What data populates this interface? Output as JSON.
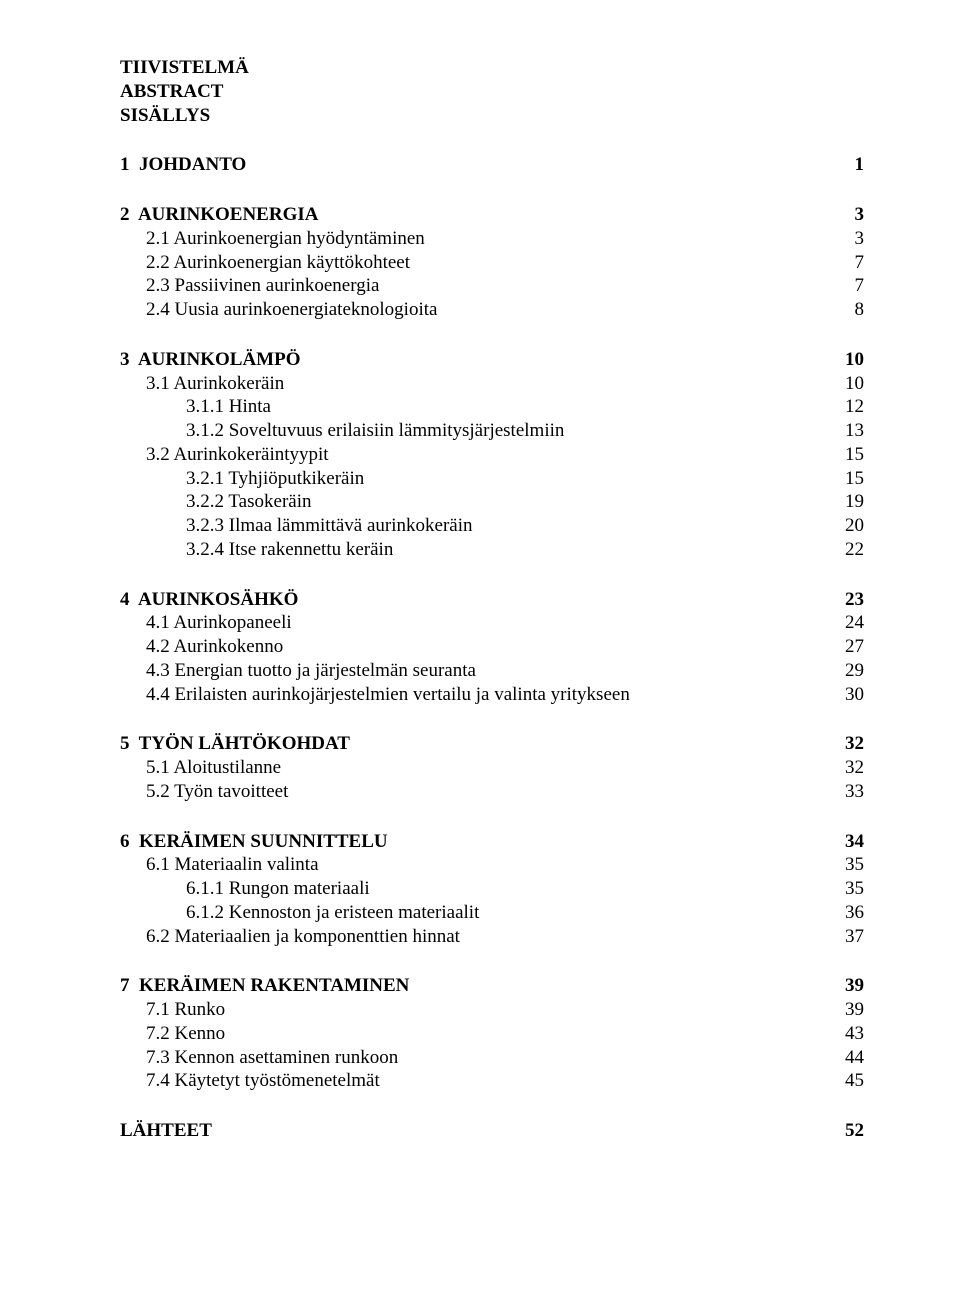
{
  "header": {
    "line1": "TIIVISTELMÄ",
    "line2": "ABSTRACT",
    "line3": "SISÄLLYS"
  },
  "toc": [
    {
      "section": true,
      "items": [
        {
          "label": "1  JOHDANTO",
          "page": "1",
          "bold": true,
          "indent": 0
        }
      ]
    },
    {
      "section": true,
      "items": [
        {
          "label": "2  AURINKOENERGIA",
          "page": "3",
          "bold": true,
          "indent": 0
        },
        {
          "label": "2.1 Aurinkoenergian hyödyntäminen",
          "page": "3",
          "bold": false,
          "indent": 1
        },
        {
          "label": "2.2 Aurinkoenergian käyttökohteet",
          "page": "7",
          "bold": false,
          "indent": 1
        },
        {
          "label": "2.3 Passiivinen aurinkoenergia",
          "page": "7",
          "bold": false,
          "indent": 1
        },
        {
          "label": "2.4 Uusia aurinkoenergiateknologioita",
          "page": "8",
          "bold": false,
          "indent": 1
        }
      ]
    },
    {
      "section": true,
      "items": [
        {
          "label": "3  AURINKOLÄMPÖ",
          "page": "10",
          "bold": true,
          "indent": 0
        },
        {
          "label": "3.1 Aurinkokeräin",
          "page": "10",
          "bold": false,
          "indent": 1
        },
        {
          "label": "3.1.1 Hinta",
          "page": "12",
          "bold": false,
          "indent": 2
        },
        {
          "label": "3.1.2 Soveltuvuus erilaisiin lämmitysjärjestelmiin",
          "page": "13",
          "bold": false,
          "indent": 2
        },
        {
          "label": "3.2 Aurinkokeräintyypit",
          "page": "15",
          "bold": false,
          "indent": 1
        },
        {
          "label": "3.2.1 Tyhjiöputkikeräin",
          "page": "15",
          "bold": false,
          "indent": 2
        },
        {
          "label": "3.2.2 Tasokeräin",
          "page": "19",
          "bold": false,
          "indent": 2
        },
        {
          "label": "3.2.3 Ilmaa lämmittävä aurinkokeräin",
          "page": "20",
          "bold": false,
          "indent": 2
        },
        {
          "label": "3.2.4 Itse rakennettu keräin",
          "page": "22",
          "bold": false,
          "indent": 2
        }
      ]
    },
    {
      "section": true,
      "items": [
        {
          "label": "4  AURINKOSÄHKÖ",
          "page": "23",
          "bold": true,
          "indent": 0
        },
        {
          "label": "4.1 Aurinkopaneeli",
          "page": "24",
          "bold": false,
          "indent": 1
        },
        {
          "label": "4.2 Aurinkokenno",
          "page": "27",
          "bold": false,
          "indent": 1
        },
        {
          "label": "4.3 Energian tuotto ja järjestelmän seuranta",
          "page": "29",
          "bold": false,
          "indent": 1
        },
        {
          "label": "4.4 Erilaisten aurinkojärjestelmien vertailu ja valinta yritykseen",
          "page": "30",
          "bold": false,
          "indent": 1
        }
      ]
    },
    {
      "section": true,
      "items": [
        {
          "label": "5  TYÖN LÄHTÖKOHDAT",
          "page": "32",
          "bold": true,
          "indent": 0
        },
        {
          "label": "5.1 Aloitustilanne",
          "page": "32",
          "bold": false,
          "indent": 1
        },
        {
          "label": "5.2 Työn tavoitteet",
          "page": "33",
          "bold": false,
          "indent": 1
        }
      ]
    },
    {
      "section": true,
      "items": [
        {
          "label": "6  KERÄIMEN SUUNNITTELU",
          "page": "34",
          "bold": true,
          "indent": 0
        },
        {
          "label": "6.1 Materiaalin valinta",
          "page": "35",
          "bold": false,
          "indent": 1
        },
        {
          "label": "6.1.1 Rungon materiaali",
          "page": "35",
          "bold": false,
          "indent": 2
        },
        {
          "label": "6.1.2 Kennoston ja eristeen materiaalit",
          "page": "36",
          "bold": false,
          "indent": 2
        },
        {
          "label": "6.2 Materiaalien ja komponenttien hinnat",
          "page": "37",
          "bold": false,
          "indent": 1
        }
      ]
    },
    {
      "section": true,
      "items": [
        {
          "label": "7  KERÄIMEN RAKENTAMINEN",
          "page": "39",
          "bold": true,
          "indent": 0
        },
        {
          "label": "7.1 Runko",
          "page": "39",
          "bold": false,
          "indent": 1
        },
        {
          "label": "7.2 Kenno",
          "page": "43",
          "bold": false,
          "indent": 1
        },
        {
          "label": "7.3 Kennon asettaminen runkoon",
          "page": "44",
          "bold": false,
          "indent": 1
        },
        {
          "label": "7.4 Käytetyt työstömenetelmät",
          "page": "45",
          "bold": false,
          "indent": 1
        }
      ]
    },
    {
      "section": true,
      "items": [
        {
          "label": "LÄHTEET",
          "page": "52",
          "bold": true,
          "indent": 0
        }
      ]
    }
  ]
}
